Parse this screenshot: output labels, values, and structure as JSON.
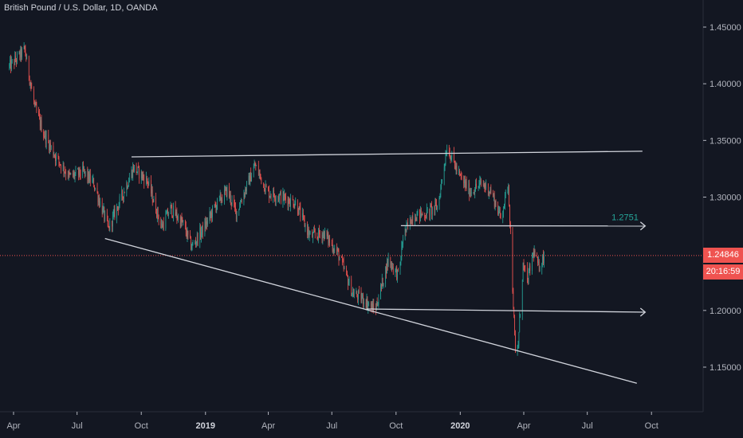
{
  "header": {
    "title": "British Pound / U.S. Dollar, 1D, OANDA"
  },
  "colors": {
    "background": "#131722",
    "up": "#26a69a",
    "down": "#ef5350",
    "price_line": "#ef5350",
    "drawing": "#d1d4dc",
    "label": "#26a69a"
  },
  "price_badge": {
    "price": "1.24846",
    "countdown": "20:16:59"
  },
  "chart_data": {
    "type": "candlestick",
    "symbol": "British Pound / U.S. Dollar",
    "interval": "1D",
    "exchange": "OANDA",
    "yaxis": {
      "ticks": [
        "1.45000",
        "1.40000",
        "1.35000",
        "1.30000",
        "1.25000",
        "1.20000",
        "1.15000"
      ],
      "range": [
        1.115,
        1.475
      ]
    },
    "xaxis": {
      "ticks": [
        {
          "label": "Apr",
          "bold": false
        },
        {
          "label": "Jul",
          "bold": false
        },
        {
          "label": "Oct",
          "bold": false
        },
        {
          "label": "2019",
          "bold": true
        },
        {
          "label": "Apr",
          "bold": false
        },
        {
          "label": "Jul",
          "bold": false
        },
        {
          "label": "Oct",
          "bold": false
        },
        {
          "label": "2020",
          "bold": true
        },
        {
          "label": "Apr",
          "bold": false
        },
        {
          "label": "Jul",
          "bold": false
        },
        {
          "label": "Oct",
          "bold": false
        }
      ]
    },
    "last_price": 1.24846,
    "horizontal_label": "1.2751",
    "price_path": [
      [
        "2018-03-26",
        1.415
      ],
      [
        "2018-04-17",
        1.43
      ],
      [
        "2018-05-01",
        1.38
      ],
      [
        "2018-05-15",
        1.355
      ],
      [
        "2018-06-01",
        1.335
      ],
      [
        "2018-06-20",
        1.318
      ],
      [
        "2018-07-10",
        1.322
      ],
      [
        "2018-07-25",
        1.312
      ],
      [
        "2018-08-15",
        1.272
      ],
      [
        "2018-08-31",
        1.296
      ],
      [
        "2018-09-20",
        1.326
      ],
      [
        "2018-10-10",
        1.314
      ],
      [
        "2018-10-30",
        1.274
      ],
      [
        "2018-11-12",
        1.29
      ],
      [
        "2018-11-30",
        1.276
      ],
      [
        "2018-12-12",
        1.256
      ],
      [
        "2018-12-31",
        1.274
      ],
      [
        "2019-01-15",
        1.292
      ],
      [
        "2019-02-01",
        1.306
      ],
      [
        "2019-02-14",
        1.286
      ],
      [
        "2019-03-13",
        1.328
      ],
      [
        "2019-03-31",
        1.304
      ],
      [
        "2019-04-20",
        1.3
      ],
      [
        "2019-05-10",
        1.295
      ],
      [
        "2019-05-31",
        1.265
      ],
      [
        "2019-06-20",
        1.268
      ],
      [
        "2019-07-10",
        1.25
      ],
      [
        "2019-07-31",
        1.215
      ],
      [
        "2019-08-15",
        1.21
      ],
      [
        "2019-09-01",
        1.2
      ],
      [
        "2019-09-20",
        1.245
      ],
      [
        "2019-10-05",
        1.23
      ],
      [
        "2019-10-11",
        1.265
      ],
      [
        "2019-10-25",
        1.284
      ],
      [
        "2019-11-12",
        1.285
      ],
      [
        "2019-11-30",
        1.292
      ],
      [
        "2019-12-13",
        1.345
      ],
      [
        "2019-12-31",
        1.318
      ],
      [
        "2020-01-15",
        1.305
      ],
      [
        "2020-02-01",
        1.312
      ],
      [
        "2020-02-14",
        1.305
      ],
      [
        "2020-02-28",
        1.282
      ],
      [
        "2020-03-10",
        1.312
      ],
      [
        "2020-03-20",
        1.16
      ],
      [
        "2020-03-24",
        1.17
      ],
      [
        "2020-03-31",
        1.24
      ],
      [
        "2020-04-06",
        1.225
      ],
      [
        "2020-04-15",
        1.252
      ],
      [
        "2020-04-22",
        1.238
      ],
      [
        "2020-04-30",
        1.248
      ]
    ],
    "trendlines": [
      {
        "from": [
          "2018-09-17",
          1.3355
        ],
        "to": [
          "2020-09-18",
          1.3405
        ]
      },
      {
        "from": [
          "2018-08-10",
          1.2635
        ],
        "to": [
          "2020-09-10",
          1.1358
        ]
      }
    ],
    "arrow_lines": [
      {
        "from": [
          "2019-10-08",
          1.2748
        ],
        "to": [
          "2020-09-22",
          1.2745
        ]
      },
      {
        "from": [
          "2019-08-20",
          1.2013
        ],
        "to": [
          "2020-09-22",
          1.1985
        ]
      }
    ]
  }
}
